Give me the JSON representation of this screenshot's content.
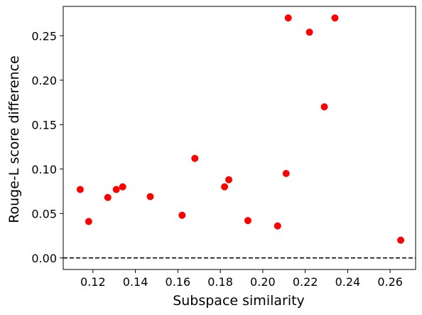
{
  "chart_data": {
    "type": "scatter",
    "title": "",
    "xlabel": "Subspace similarity",
    "ylabel": "Rouge-L score difference",
    "xlim": [
      0.106,
      0.272
    ],
    "ylim": [
      -0.013,
      0.283
    ],
    "xticks": [
      0.12,
      0.14,
      0.16,
      0.18,
      0.2,
      0.22,
      0.24,
      0.26
    ],
    "xtick_labels": [
      "0.12",
      "0.14",
      "0.16",
      "0.18",
      "0.20",
      "0.22",
      "0.24",
      "0.26"
    ],
    "yticks": [
      0.0,
      0.05,
      0.1,
      0.15,
      0.2,
      0.25
    ],
    "ytick_labels": [
      "0.00",
      "0.05",
      "0.10",
      "0.15",
      "0.20",
      "0.25"
    ],
    "reference_line": {
      "y": 0.0,
      "style": "dashed",
      "color": "#000000"
    },
    "grid": false,
    "marker_color": "#ff0000",
    "points": [
      {
        "x": 0.114,
        "y": 0.077
      },
      {
        "x": 0.118,
        "y": 0.041
      },
      {
        "x": 0.127,
        "y": 0.068
      },
      {
        "x": 0.131,
        "y": 0.077
      },
      {
        "x": 0.134,
        "y": 0.08
      },
      {
        "x": 0.147,
        "y": 0.069
      },
      {
        "x": 0.162,
        "y": 0.048
      },
      {
        "x": 0.168,
        "y": 0.112
      },
      {
        "x": 0.182,
        "y": 0.08
      },
      {
        "x": 0.184,
        "y": 0.088
      },
      {
        "x": 0.193,
        "y": 0.042
      },
      {
        "x": 0.207,
        "y": 0.036
      },
      {
        "x": 0.211,
        "y": 0.095
      },
      {
        "x": 0.212,
        "y": 0.27
      },
      {
        "x": 0.222,
        "y": 0.254
      },
      {
        "x": 0.229,
        "y": 0.17
      },
      {
        "x": 0.234,
        "y": 0.27
      },
      {
        "x": 0.265,
        "y": 0.02
      }
    ]
  }
}
